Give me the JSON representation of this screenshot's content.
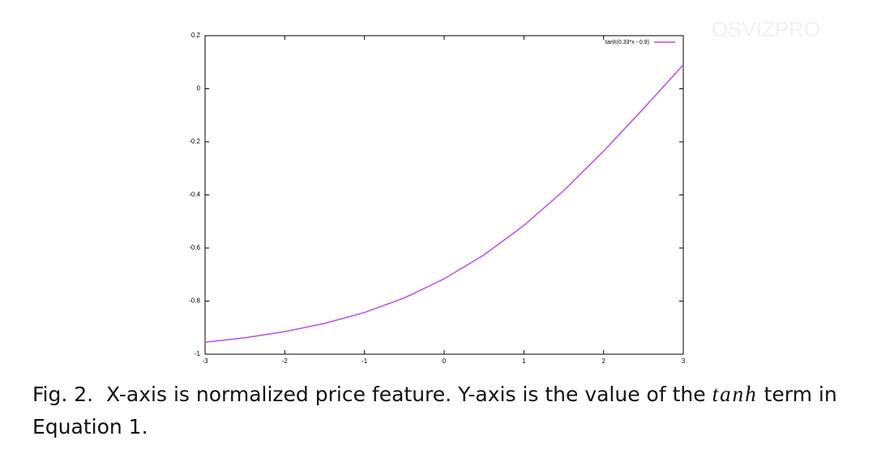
{
  "chart_data": {
    "type": "line",
    "legend": "top-right",
    "xlim": [
      -3,
      3
    ],
    "ylim": [
      -1,
      0.2
    ],
    "xticks": [
      -3,
      -2,
      -1,
      0,
      1,
      2,
      3
    ],
    "yticks": [
      -1,
      -0.8,
      -0.6,
      -0.4,
      -0.2,
      0,
      0.2
    ],
    "x": [
      -3,
      -2.5,
      -2,
      -1.5,
      -1,
      -0.5,
      0,
      0.5,
      1,
      1.5,
      2,
      2.5,
      3
    ],
    "series": [
      {
        "name": "tanh(0.33*x - 0.9)",
        "color": "#b84cf0",
        "values": [
          -0.955,
          -0.938,
          -0.915,
          -0.884,
          -0.843,
          -0.788,
          -0.716,
          -0.626,
          -0.515,
          -0.384,
          -0.235,
          -0.075,
          0.09
        ]
      }
    ]
  },
  "caption": {
    "label": "Fig. 2.",
    "text_before": "X-axis is normalized price feature. Y-axis is the value of the",
    "math": "tanh",
    "text_after": "term in Equation 1."
  },
  "watermark": "OSVIZPRO"
}
